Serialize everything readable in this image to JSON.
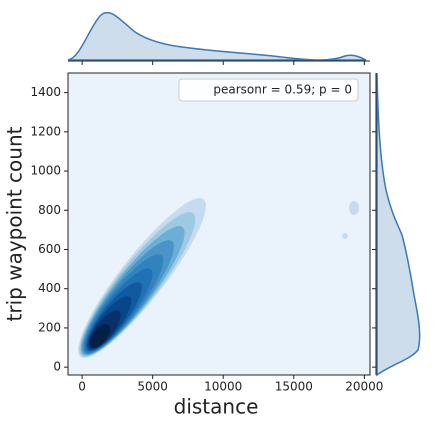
{
  "chart_data": {
    "type": "kde",
    "annotation": "pearsonr = 0.59; p = 0",
    "x_label": "distance",
    "y_label": "trip waypoint count",
    "xlim": [
      -1000,
      20400
    ],
    "ylim": [
      -40,
      1500
    ],
    "xticks": [
      0,
      5000,
      10000,
      15000,
      20000
    ],
    "yticks": [
      0,
      200,
      400,
      600,
      800,
      1000,
      1200,
      1400
    ],
    "color": "#3b78b5"
  }
}
